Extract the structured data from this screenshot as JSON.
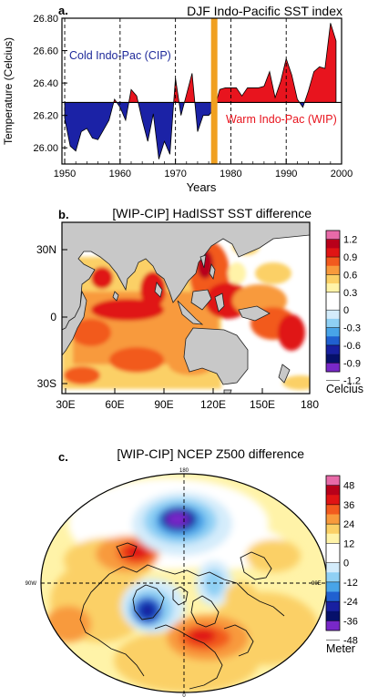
{
  "colors": {
    "warm": "#e8141e",
    "cold": "#1b22a6",
    "event_bar": "#f0a020",
    "land": "#c8c8c8",
    "cold_label": "#1f2a9a",
    "warm_label": "#e8141e"
  },
  "chart_data": [
    {
      "panel": "a.",
      "type": "area",
      "title": "DJF Indo-Pacific SST index",
      "xlabel": "Years",
      "ylabel": "Temperature (Celcius)",
      "xlim": [
        1949.5,
        2000
      ],
      "ylim": [
        25.9,
        26.8
      ],
      "xticks": [
        "1950",
        "1960",
        "1970",
        "1980",
        "1990",
        "2000"
      ],
      "yticks": [
        "26.80",
        "26.60",
        "26.40",
        "26.20",
        "26.00"
      ],
      "baseline": 26.28,
      "dashed_years": [
        1950,
        1960,
        1970,
        1980,
        1990
      ],
      "event_year": 1977,
      "annotations": {
        "cold": "Cold Indo-Pac (CIP)",
        "warm": "Warm Indo-Pac (WIP)"
      },
      "x": [
        1950,
        1951,
        1952,
        1953,
        1954,
        1955,
        1956,
        1957,
        1958,
        1959,
        1960,
        1961,
        1962,
        1963,
        1964,
        1965,
        1966,
        1967,
        1968,
        1969,
        1970,
        1971,
        1972,
        1973,
        1974,
        1975,
        1976,
        1977,
        1978,
        1979,
        1980,
        1981,
        1982,
        1983,
        1984,
        1985,
        1986,
        1987,
        1988,
        1989,
        1990,
        1991,
        1992,
        1993,
        1994,
        1995,
        1996,
        1997,
        1998,
        1999
      ],
      "values": [
        26.18,
        26.01,
        25.98,
        26.1,
        26.12,
        26.06,
        26.05,
        26.11,
        26.17,
        26.3,
        26.25,
        26.17,
        26.36,
        26.32,
        26.17,
        26.04,
        26.21,
        25.93,
        26.04,
        25.96,
        26.43,
        26.2,
        26.33,
        26.46,
        26.1,
        26.2,
        26.2,
        26.24,
        26.36,
        26.37,
        26.37,
        26.37,
        26.32,
        26.37,
        26.37,
        26.37,
        26.38,
        26.47,
        26.31,
        26.41,
        26.55,
        26.45,
        26.3,
        26.25,
        26.35,
        26.47,
        26.5,
        26.49,
        26.77,
        26.66
      ]
    },
    {
      "panel": "b.",
      "type": "heatmap",
      "title": "[WIP-CIP] HadISST SST difference",
      "xticks": [
        "30E",
        "60E",
        "90E",
        "120E",
        "150E",
        "180"
      ],
      "yticks": [
        "30N",
        "0",
        "30S"
      ],
      "colorbar": {
        "label": "Celcius",
        "ticks": [
          "1.2",
          "0.9",
          "0.6",
          "0.3",
          "0",
          "-0.3",
          "-0.6",
          "-0.9",
          "-1.2"
        ],
        "colors": [
          "#e86aa8",
          "#b8001a",
          "#e01414",
          "#f25a1e",
          "#f89a3c",
          "#fbd066",
          "#fff3a8",
          "#ffffff",
          "#ffffff",
          "#d4ecfb",
          "#8fd0f4",
          "#48a4e8",
          "#2060d0",
          "#1820a0",
          "#06106a",
          "#7828c8"
        ]
      }
    },
    {
      "panel": "c.",
      "type": "heatmap",
      "title": "[WIP-CIP] NCEP Z500 difference",
      "map_labels": {
        "top": "180",
        "left": "90W",
        "right": "90E",
        "bottom": "0"
      },
      "colorbar": {
        "label": "Meter",
        "ticks": [
          "48",
          "36",
          "24",
          "12",
          "0",
          "-12",
          "-24",
          "-36",
          "-48"
        ],
        "colors": [
          "#e86aa8",
          "#b8001a",
          "#e01414",
          "#f25a1e",
          "#f89a3c",
          "#fbd066",
          "#fff3a8",
          "#ffffff",
          "#ffffff",
          "#d4ecfb",
          "#8fd0f4",
          "#48a4e8",
          "#2060d0",
          "#1820a0",
          "#06106a",
          "#7828c8"
        ]
      }
    }
  ]
}
